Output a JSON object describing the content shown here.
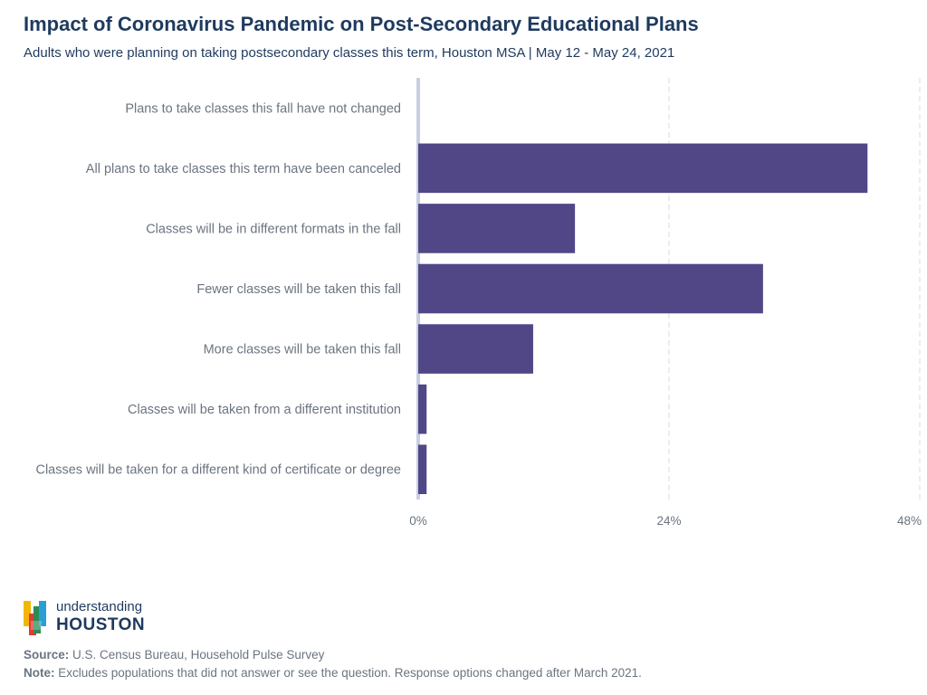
{
  "header": {
    "title": "Impact of Coronavirus Pandemic on Post-Secondary Educational Plans",
    "subtitle": "Adults who were planning on taking postsecondary classes this term, Houston MSA | May 12 - May 24, 2021"
  },
  "chart_data": {
    "type": "bar",
    "orientation": "horizontal",
    "categories": [
      "Plans to take classes this fall have not changed",
      "All plans to take classes this term have been canceled",
      "Classes will be in different formats in the fall",
      "Fewer classes will be taken this fall",
      "More classes will be taken this fall",
      "Classes will be taken from a different institution",
      "Classes will be taken for a different kind of certificate or degree"
    ],
    "values": [
      0,
      43,
      15,
      33,
      11,
      0.8,
      0.8
    ],
    "xlim": [
      0,
      48
    ],
    "xticks": [
      0,
      24,
      48
    ],
    "xtick_labels": [
      "0%",
      "24%",
      "48%"
    ],
    "grid": true,
    "bar_color": "#514787",
    "title": "Impact of Coronavirus Pandemic on Post-Secondary Educational Plans"
  },
  "logo": {
    "line1": "understanding",
    "line2": "HOUSTON"
  },
  "footer": {
    "source_label": "Source:",
    "source_text": " U.S. Census Bureau, Household Pulse Survey",
    "note_label": "Note:",
    "note_text": " Excludes populations that did not answer or see the question. Response options changed after March 2021."
  }
}
